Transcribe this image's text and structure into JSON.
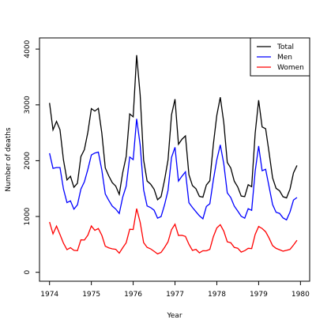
{
  "chart_data": {
    "type": "line",
    "xlabel": "Year",
    "ylabel": "Number of deaths",
    "x": [
      1974,
      1974.083,
      1974.167,
      1974.25,
      1974.333,
      1974.417,
      1974.5,
      1974.583,
      1974.667,
      1974.75,
      1974.833,
      1974.917,
      1975,
      1975.083,
      1975.167,
      1975.25,
      1975.333,
      1975.417,
      1975.5,
      1975.583,
      1975.667,
      1975.75,
      1975.833,
      1975.917,
      1976,
      1976.083,
      1976.167,
      1976.25,
      1976.333,
      1976.417,
      1976.5,
      1976.583,
      1976.667,
      1976.75,
      1976.833,
      1976.917,
      1977,
      1977.083,
      1977.167,
      1977.25,
      1977.333,
      1977.417,
      1977.5,
      1977.583,
      1977.667,
      1977.75,
      1977.833,
      1977.917,
      1978,
      1978.083,
      1978.167,
      1978.25,
      1978.333,
      1978.417,
      1978.5,
      1978.583,
      1978.667,
      1978.75,
      1978.833,
      1978.917,
      1979,
      1979.083,
      1979.167,
      1979.25,
      1979.333,
      1979.417,
      1979.5,
      1979.583,
      1979.667,
      1979.75,
      1979.833,
      1979.917
    ],
    "series": [
      {
        "name": "Total",
        "color": "#000000",
        "values": [
          3035,
          2552,
          2704,
          2554,
          2014,
          1655,
          1721,
          1524,
          1596,
          2074,
          2199,
          2512,
          2933,
          2889,
          2938,
          2497,
          1870,
          1726,
          1607,
          1545,
          1396,
          1787,
          2076,
          2837,
          2787,
          3891,
          3179,
          2011,
          1636,
          1580,
          1489,
          1300,
          1356,
          1653,
          2013,
          2823,
          3102,
          2294,
          2385,
          2444,
          1748,
          1554,
          1498,
          1361,
          1346,
          1564,
          1640,
          2293,
          2815,
          3137,
          2679,
          1969,
          1870,
          1633,
          1529,
          1366,
          1357,
          1570,
          1535,
          2491,
          3084,
          2605,
          2573,
          2143,
          1693,
          1504,
          1461,
          1354,
          1333,
          1492,
          1781,
          1915
        ]
      },
      {
        "name": "Men",
        "color": "#0000ff",
        "values": [
          2134,
          1863,
          1877,
          1877,
          1492,
          1249,
          1280,
          1131,
          1209,
          1492,
          1621,
          1846,
          2103,
          2137,
          2153,
          1833,
          1403,
          1288,
          1186,
          1133,
          1053,
          1347,
          1545,
          2066,
          2020,
          2750,
          2283,
          1479,
          1189,
          1160,
          1113,
          970,
          999,
          1208,
          1467,
          2059,
          2240,
          1634,
          1722,
          1801,
          1246,
          1162,
          1087,
          1013,
          959,
          1179,
          1229,
          1655,
          2019,
          2284,
          1942,
          1423,
          1340,
          1187,
          1098,
          1004,
          970,
          1140,
          1110,
          1812,
          2263,
          1820,
          1846,
          1531,
          1215,
          1075,
          1056,
          975,
          940,
          1081,
          1294,
          1341
        ]
      },
      {
        "name": "Women",
        "color": "#ff0000",
        "values": [
          901,
          689,
          827,
          677,
          522,
          406,
          441,
          393,
          387,
          582,
          578,
          666,
          830,
          752,
          785,
          664,
          467,
          438,
          421,
          412,
          343,
          440,
          531,
          771,
          767,
          1141,
          896,
          532,
          447,
          420,
          376,
          330,
          357,
          445,
          546,
          764,
          862,
          660,
          663,
          643,
          502,
          392,
          411,
          348,
          387,
          385,
          411,
          638,
          796,
          853,
          737,
          546,
          530,
          446,
          431,
          362,
          387,
          430,
          425,
          679,
          821,
          785,
          727,
          612,
          478,
          429,
          405,
          379,
          393,
          411,
          487,
          574
        ]
      }
    ],
    "xlim": [
      1973.76,
      1980.22
    ],
    "xticks": [
      1974,
      1975,
      1976,
      1977,
      1978,
      1979,
      1980
    ],
    "ylim": [
      -160,
      4200
    ],
    "yticks": [
      0,
      1000,
      2000,
      3000,
      4000
    ],
    "legend": "top-right"
  }
}
